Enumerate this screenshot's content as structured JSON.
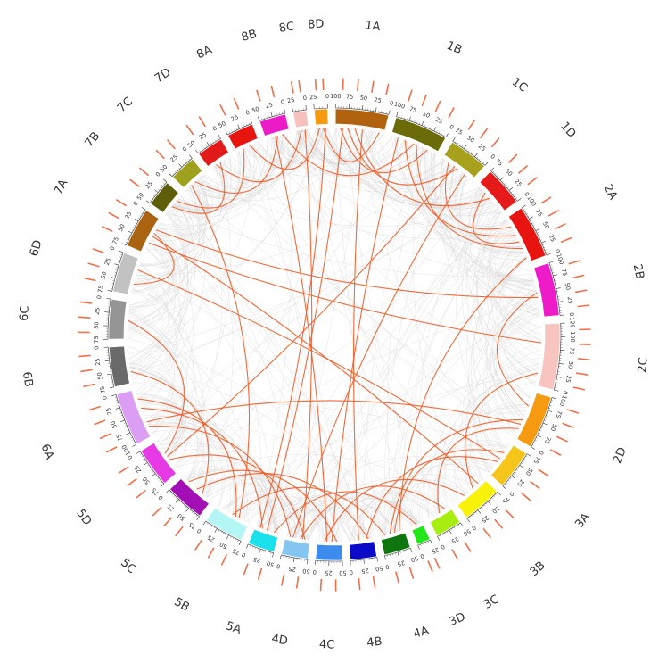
{
  "chromosomes": [
    {
      "name": "1A",
      "length": 100,
      "color": "#b0620f"
    },
    {
      "name": "1B",
      "length": 100,
      "color": "#6b6b0a"
    },
    {
      "name": "1C",
      "length": 75,
      "color": "#a7a11d"
    },
    {
      "name": "1D",
      "length": 75,
      "color": "#e61a1a"
    },
    {
      "name": "2A",
      "length": 100,
      "color": "#e8140f"
    },
    {
      "name": "2B",
      "length": 100,
      "color": "#ee1bc8"
    },
    {
      "name": "2C",
      "length": 125,
      "color": "#f8c4c0"
    },
    {
      "name": "2D",
      "length": 100,
      "color": "#f59a11"
    },
    {
      "name": "3A",
      "length": 75,
      "color": "#f6c51a"
    },
    {
      "name": "3B",
      "length": 75,
      "color": "#f8f20a"
    },
    {
      "name": "3C",
      "length": 50,
      "color": "#a8ee13"
    },
    {
      "name": "3D",
      "length": 25,
      "color": "#22e61a"
    },
    {
      "name": "4A",
      "length": 50,
      "color": "#0f760f"
    },
    {
      "name": "4B",
      "length": 50,
      "color": "#0a0ac8"
    },
    {
      "name": "4C",
      "length": 50,
      "color": "#3d8bed"
    },
    {
      "name": "4D",
      "length": 50,
      "color": "#84c6f1"
    },
    {
      "name": "5A",
      "length": 50,
      "color": "#1ae0ea"
    },
    {
      "name": "5B",
      "length": 75,
      "color": "#b4f6f6"
    },
    {
      "name": "5C",
      "length": 75,
      "color": "#a20fb4"
    },
    {
      "name": "5D",
      "length": 75,
      "color": "#e53ae4"
    },
    {
      "name": "6A",
      "length": 100,
      "color": "#dc9ef4"
    },
    {
      "name": "6B",
      "length": 75,
      "color": "#6a6a6a"
    },
    {
      "name": "6C",
      "length": 75,
      "color": "#959595"
    },
    {
      "name": "6D",
      "length": 75,
      "color": "#c2c2c2"
    },
    {
      "name": "7A",
      "length": 75,
      "color": "#aa6310"
    },
    {
      "name": "7B",
      "length": 50,
      "color": "#5e5e0a"
    },
    {
      "name": "7C",
      "length": 50,
      "color": "#9ea11d"
    },
    {
      "name": "7D",
      "length": 50,
      "color": "#e41a1a"
    },
    {
      "name": "8A",
      "length": 50,
      "color": "#e8140f"
    },
    {
      "name": "8B",
      "length": 50,
      "color": "#ec1bc8"
    },
    {
      "name": "8C",
      "length": 25,
      "color": "#f6c0bc"
    },
    {
      "name": "8D",
      "length": 25,
      "color": "#f59a11"
    }
  ],
  "link_colors": {
    "highlight": "#f15a24",
    "background": "#d9d9d9"
  },
  "highlight_links": [
    [
      "1A",
      0.1,
      "1B",
      0.8
    ],
    [
      "1A",
      0.25,
      "1C",
      0.5
    ],
    [
      "1A",
      0.4,
      "1D",
      0.5
    ],
    [
      "1A",
      0.9,
      "8D",
      0.6
    ],
    [
      "1B",
      0.3,
      "2A",
      0.4
    ],
    [
      "1B",
      0.55,
      "2A",
      0.7
    ],
    [
      "1C",
      0.2,
      "2A",
      0.2
    ],
    [
      "1D",
      0.3,
      "2A",
      0.55
    ],
    [
      "1A",
      0.15,
      "5A",
      0.5
    ],
    [
      "1A",
      0.55,
      "4B",
      0.6
    ],
    [
      "1B",
      0.15,
      "4C",
      0.4
    ],
    [
      "1C",
      0.75,
      "4D",
      0.7
    ],
    [
      "2B",
      0.5,
      "2D",
      0.3
    ],
    [
      "2C",
      0.8,
      "3B",
      0.4
    ],
    [
      "2D",
      0.8,
      "3C",
      0.5
    ],
    [
      "2D",
      0.6,
      "4A",
      0.6
    ],
    [
      "3A",
      0.6,
      "4B",
      0.3
    ],
    [
      "3A",
      0.3,
      "4A",
      0.4
    ],
    [
      "3B",
      0.7,
      "4C",
      0.7
    ],
    [
      "3C",
      0.2,
      "4D",
      0.4
    ],
    [
      "3D",
      0.5,
      "5A",
      0.2
    ],
    [
      "4A",
      0.8,
      "5B",
      0.5
    ],
    [
      "4B",
      0.2,
      "5C",
      0.5
    ],
    [
      "4C",
      0.2,
      "5C",
      0.8
    ],
    [
      "4D",
      0.2,
      "5D",
      0.4
    ],
    [
      "4D",
      0.8,
      "6A",
      0.2
    ],
    [
      "5A",
      0.7,
      "6A",
      0.6
    ],
    [
      "5B",
      0.4,
      "6A",
      0.8
    ],
    [
      "5C",
      0.3,
      "6B",
      0.3
    ],
    [
      "5D",
      0.6,
      "6C",
      0.5
    ],
    [
      "6D",
      0.3,
      "7A",
      0.6
    ],
    [
      "7A",
      0.3,
      "2C",
      0.3
    ],
    [
      "7A",
      0.7,
      "2B",
      0.6
    ],
    [
      "7B",
      0.4,
      "7D",
      0.5
    ],
    [
      "7B",
      0.7,
      "8A",
      0.3
    ],
    [
      "7C",
      0.5,
      "8B",
      0.5
    ],
    [
      "7D",
      0.3,
      "8C",
      0.4
    ],
    [
      "8A",
      0.6,
      "8D",
      0.3
    ],
    [
      "8B",
      0.4,
      "4C",
      0.6
    ],
    [
      "8C",
      0.7,
      "4D",
      0.3
    ],
    [
      "8D",
      0.8,
      "5A",
      0.8
    ],
    [
      "7C",
      0.3,
      "5B",
      0.3
    ],
    [
      "6A",
      0.3,
      "2D",
      0.7
    ],
    [
      "6D",
      0.7,
      "3A",
      0.5
    ],
    [
      "7A",
      0.5,
      "3B",
      0.2
    ],
    [
      "1C",
      0.4,
      "5D",
      0.5
    ],
    [
      "2A",
      0.9,
      "4A",
      0.2
    ],
    [
      "8B",
      0.7,
      "1B",
      0.5
    ]
  ],
  "gene_labels_note": ""
}
